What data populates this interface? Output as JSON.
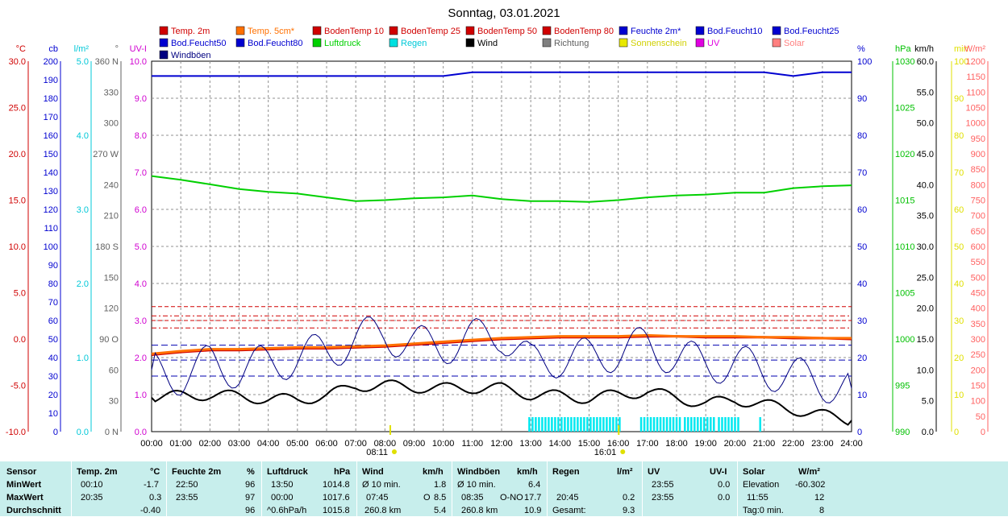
{
  "title": "Sonntag, 03.01.2021",
  "legend": [
    {
      "label": "Temp. 2m",
      "color": "#d00000"
    },
    {
      "label": "Temp. 5cm*",
      "color": "#ff7000"
    },
    {
      "label": "BodenTemp 10",
      "color": "#d00000"
    },
    {
      "label": "BodenTemp 25",
      "color": "#d00000"
    },
    {
      "label": "BodenTemp 50",
      "color": "#d00000"
    },
    {
      "label": "BodenTemp 80",
      "color": "#d00000"
    },
    {
      "label": "Feuchte 2m*",
      "color": "#0000d0"
    },
    {
      "label": "Bod.Feucht10",
      "color": "#0000d0"
    },
    {
      "label": "Bod.Feucht25",
      "color": "#0000d0"
    },
    {
      "label": "Bod.Feucht50",
      "color": "#0000d0"
    },
    {
      "label": "Bod.Feucht80",
      "color": "#0000d0"
    },
    {
      "label": "Luftdruck",
      "color": "#00d000"
    },
    {
      "label": "Regen",
      "color": "#00e0e0"
    },
    {
      "label": "Wind",
      "color": "#000000"
    },
    {
      "label": "Richtung",
      "color": "#808080"
    },
    {
      "label": "Sonnenschein",
      "color": "#e8e800"
    },
    {
      "label": "UV",
      "color": "#e000e0"
    },
    {
      "label": "Solar",
      "color": "#ff8080"
    },
    {
      "label": "Windböen",
      "color": "#000080"
    }
  ],
  "axes": [
    {
      "unit": "°C",
      "color": "#d00000",
      "ticks": [
        "30.0",
        "25.0",
        "20.0",
        "15.0",
        "10.0",
        "5.0",
        "0.0",
        "-5.0",
        "-10.0"
      ]
    },
    {
      "unit": "cb",
      "color": "#0000d0",
      "ticks": [
        "200",
        "190",
        "180",
        "170",
        "160",
        "150",
        "140",
        "130",
        "120",
        "110",
        "100",
        "90",
        "80",
        "70",
        "60",
        "50",
        "40",
        "30",
        "20",
        "10",
        "0"
      ]
    },
    {
      "unit": "l/m²",
      "color": "#00c8d8",
      "ticks": [
        "5.0",
        "4.0",
        "3.0",
        "2.0",
        "1.0",
        "0.0"
      ]
    },
    {
      "unit": "°",
      "color": "#606060",
      "ticks": [
        "360 N",
        "330",
        "300",
        "270 W",
        "240",
        "210",
        "180 S",
        "150",
        "120",
        "90 O",
        "60",
        "30",
        "0 N"
      ]
    },
    {
      "unit": "UV-I",
      "color": "#d000d0",
      "ticks": [
        "10.0",
        "9.0",
        "8.0",
        "7.0",
        "6.0",
        "5.0",
        "4.0",
        "3.0",
        "2.0",
        "1.0",
        "0.0"
      ]
    },
    {
      "unit": "%",
      "color": "#0000d0",
      "ticks": [
        "100",
        "90",
        "80",
        "70",
        "60",
        "50",
        "40",
        "30",
        "20",
        "10",
        "0"
      ]
    },
    {
      "unit": "hPa",
      "color": "#00c000",
      "ticks": [
        "1030",
        "1025",
        "1020",
        "1015",
        "1010",
        "1005",
        "1000",
        "995",
        "990"
      ]
    },
    {
      "unit": "km/h",
      "color": "#000000",
      "ticks": [
        "60.0",
        "55.0",
        "50.0",
        "45.0",
        "40.0",
        "35.0",
        "30.0",
        "25.0",
        "20.0",
        "15.0",
        "10.0",
        "5.0",
        "0.0"
      ]
    },
    {
      "unit": "min",
      "color": "#e0e000",
      "ticks": [
        "100",
        "90",
        "80",
        "70",
        "60",
        "50",
        "40",
        "30",
        "20",
        "10",
        "0"
      ]
    },
    {
      "unit": "W/m²",
      "color": "#ff6060",
      "ticks": [
        "1200",
        "1150",
        "1100",
        "1050",
        "1000",
        "950",
        "900",
        "850",
        "800",
        "750",
        "700",
        "650",
        "600",
        "550",
        "500",
        "450",
        "400",
        "350",
        "300",
        "250",
        "200",
        "150",
        "100",
        "50",
        "0"
      ]
    }
  ],
  "x_ticks": [
    "00:00",
    "01:00",
    "02:00",
    "03:00",
    "04:00",
    "05:00",
    "06:00",
    "07:00",
    "08:00",
    "09:00",
    "10:00",
    "11:00",
    "12:00",
    "13:00",
    "14:00",
    "15:00",
    "16:00",
    "17:00",
    "18:00",
    "19:00",
    "20:00",
    "21:00",
    "22:00",
    "23:00",
    "24:00"
  ],
  "sunrise": "08:11",
  "sunset": "16:01",
  "chart_data": {
    "type": "line",
    "title": "Sonntag, 03.01.2021",
    "x": [
      "00:00",
      "01:00",
      "02:00",
      "03:00",
      "04:00",
      "05:00",
      "06:00",
      "07:00",
      "08:00",
      "09:00",
      "10:00",
      "11:00",
      "12:00",
      "13:00",
      "14:00",
      "15:00",
      "16:00",
      "17:00",
      "18:00",
      "19:00",
      "20:00",
      "21:00",
      "22:00",
      "23:00",
      "24:00"
    ],
    "xlim": [
      "00:00",
      "24:00"
    ],
    "series": [
      {
        "name": "Feuchte 2m*",
        "unit": "%",
        "color": "#0000d0",
        "values": [
          96,
          96,
          96,
          96,
          96,
          96,
          96,
          96,
          96,
          96,
          96,
          97,
          97,
          97,
          97,
          97,
          97,
          97,
          97,
          97,
          97,
          97,
          96,
          97,
          97
        ]
      },
      {
        "name": "Luftdruck",
        "unit": "hPa",
        "color": "#00d000",
        "values": [
          1017.6,
          1017.2,
          1016.7,
          1016.2,
          1015.9,
          1015.7,
          1015.3,
          1014.9,
          1015.0,
          1015.2,
          1015.3,
          1015.5,
          1015.1,
          1014.9,
          1014.9,
          1014.8,
          1015.0,
          1015.3,
          1015.5,
          1015.6,
          1015.8,
          1015.8,
          1016.3,
          1016.5,
          1016.6
        ]
      },
      {
        "name": "Temp. 2m",
        "unit": "°C",
        "color": "#d00000",
        "values": [
          -1.7,
          -1.4,
          -1.2,
          -1.2,
          -1.1,
          -1.0,
          -1.0,
          -0.9,
          -0.8,
          -0.6,
          -0.4,
          -0.2,
          0.0,
          0.1,
          0.2,
          0.2,
          0.2,
          0.3,
          0.3,
          0.2,
          0.2,
          0.2,
          0.1,
          0.1,
          0.0
        ]
      },
      {
        "name": "Temp. 5cm*",
        "unit": "°C",
        "color": "#ff7000",
        "values": [
          -1.6,
          -1.3,
          -1.1,
          -1.1,
          -1.0,
          -0.9,
          -0.9,
          -0.8,
          -0.7,
          -0.5,
          -0.3,
          -0.1,
          0.1,
          0.2,
          0.3,
          0.3,
          0.3,
          0.4,
          0.3,
          0.3,
          0.3,
          0.2,
          0.2,
          0.1,
          0.1
        ]
      },
      {
        "name": "Wind",
        "unit": "km/h",
        "color": "#000000",
        "values": [
          5.5,
          5.8,
          6.0,
          5.7,
          5.3,
          5.2,
          5.8,
          7.4,
          7.5,
          7.2,
          7.0,
          7.1,
          7.0,
          6.0,
          5.8,
          5.4,
          6.0,
          6.5,
          5.5,
          4.5,
          5.2,
          4.4,
          3.6,
          2.7,
          1.8
        ]
      },
      {
        "name": "Windböen",
        "unit": "km/h",
        "color": "#000080",
        "values": [
          10,
          9,
          11,
          10,
          11,
          12,
          13,
          15,
          16,
          14,
          14,
          15,
          16,
          11,
          12,
          12,
          13,
          14,
          12,
          11,
          11,
          10,
          9,
          8,
          7
        ]
      }
    ],
    "bodentemp_lines_degC": [
      3.5,
      2.5,
      2.0,
      1.2
    ],
    "rain_intervals": [
      [
        "12:55",
        "16:05"
      ],
      [
        "16:45",
        "18:05"
      ],
      [
        "18:15",
        "19:20"
      ],
      [
        "19:25",
        "20:05"
      ],
      [
        "20:50",
        "20:55"
      ]
    ]
  },
  "stats": {
    "row_labels": [
      "Sensor",
      "MinWert",
      "MaxWert",
      "Durchschnitt"
    ],
    "temp": {
      "head": "Temp. 2m",
      "unit": "°C",
      "min_time": "00:10",
      "min_val": "-1.7",
      "max_time": "20:35",
      "max_val": "0.3",
      "avg": "-0.40"
    },
    "hum": {
      "head": "Feuchte 2m",
      "unit": "%",
      "min_time": "22:50",
      "min_val": "96",
      "max_time": "23:55",
      "max_val": "97",
      "avg": "96"
    },
    "press": {
      "head": "Luftdruck",
      "unit": "hPa",
      "min_time": "13:50",
      "min_val": "1014.8",
      "max_time": "00:00",
      "max_val": "1017.6",
      "avg_label": "^0.6hPa/h",
      "avg": "1015.8"
    },
    "wind": {
      "head": "Wind",
      "unit": "km/h",
      "min_label": "Ø 10 min.",
      "min_val": "1.8",
      "max_time": "07:45",
      "max_dir": "O",
      "max_val": "8.5",
      "avg_label": "260.8 km",
      "avg": "5.4"
    },
    "gust": {
      "head": "Windböen",
      "unit": "km/h",
      "min_label": "Ø 10 min.",
      "min_val": "6.4",
      "max_time": "08:35",
      "max_dir": "O-NO",
      "max_val": "17.7",
      "avg_label": "260.8 km",
      "avg": "10.9"
    },
    "rain": {
      "head": "Regen",
      "unit": "l/m²",
      "max_time": "20:45",
      "max_val": "0.2",
      "total_label": "Gesamt:",
      "total": "9.3"
    },
    "uv": {
      "head": "UV",
      "unit": "UV-I",
      "min_time": "23:55",
      "min_val": "0.0",
      "max_time": "23:55",
      "max_val": "0.0"
    },
    "solar": {
      "head": "Solar",
      "unit": "W/m²",
      "min_label": "Elevation",
      "min_val": "-60.302",
      "max_time": "11:55",
      "max_val": "12",
      "sun_label": "Tag:0 min.",
      "sun_val": "8"
    }
  }
}
